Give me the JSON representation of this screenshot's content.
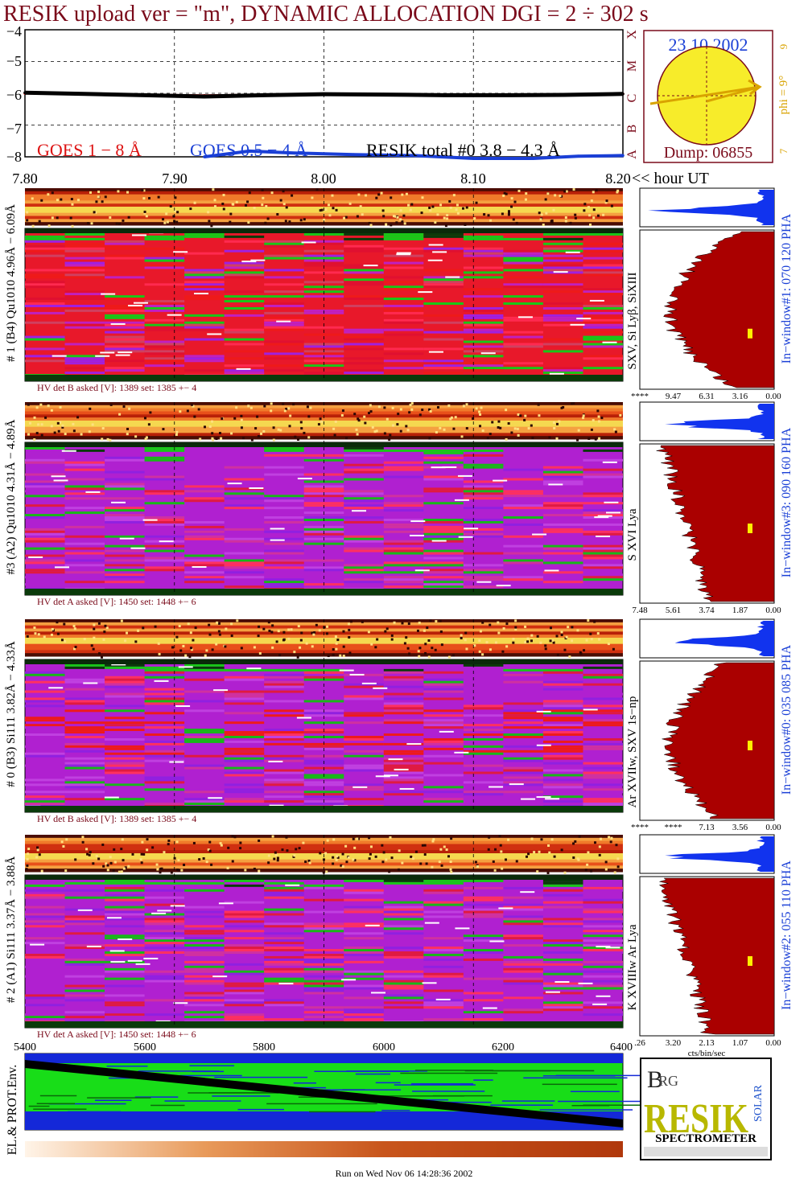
{
  "title": "RESIK upload ver = \"m\", DYNAMIC ALLOCATION  DGI =   2 ÷ 302 s",
  "footer": "Run on Wed Nov 06 14:28:36 2002",
  "colors": {
    "goes_1_8": "#dd1111",
    "goes_05_4": "#1a3fd6",
    "resik": "#000000",
    "title": "#7a0a1a",
    "hist": "#aa0000",
    "hist_blue": "#1133ee",
    "sun": "#f7ec2a",
    "phi": "#d9a300"
  },
  "top_plot": {
    "yticks": [
      "−4",
      "−5",
      "−6",
      "−7",
      "−8"
    ],
    "ylim": [
      -8,
      -4
    ],
    "xlim": [
      7.8,
      8.2
    ],
    "xticks": [
      "7.80",
      "7.90",
      "8.00",
      "8.10",
      "8.20"
    ],
    "x_unit": "<< hour UT",
    "legend": {
      "goes1": "GOES 1 − 8 Å",
      "goes2": "GOES 0.5 − 4 Å",
      "resik": "RESIK total #0  3.8 − 4.3 Å"
    },
    "right_letters": [
      "X",
      "M",
      "C",
      "B",
      "A"
    ]
  },
  "sun_box": {
    "date": "23 10 2002",
    "dump": "Dump: 06855",
    "phi_label": "phi =  9°",
    "phi_top": "9",
    "phi_bottom": "7"
  },
  "chart_data": {
    "type": "line",
    "title": "RESIK upload ver = \"m\", DYNAMIC ALLOCATION  DGI =   2 ÷ 302 s",
    "xlabel": "<< hour UT",
    "xlim": [
      7.8,
      8.2
    ],
    "ylim": [
      -8,
      -4
    ],
    "grid": true,
    "series": [
      {
        "name": "GOES 1 − 8 Å",
        "x": [
          7.8,
          7.84,
          7.88,
          7.92,
          7.96,
          8.0,
          8.04,
          8.08,
          8.12,
          8.16,
          8.2
        ],
        "values": [
          -6.0,
          -6.02,
          -6.05,
          -6.07,
          -6.05,
          -6.03,
          -6.03,
          -6.05,
          -6.05,
          -6.04,
          -6.02
        ]
      },
      {
        "name": "RESIK total #0  3.8 − 4.3 Å",
        "x": [
          7.8,
          7.84,
          7.88,
          7.92,
          7.96,
          8.0,
          8.04,
          8.08,
          8.12,
          8.16,
          8.2
        ],
        "values": [
          -5.98,
          -6.02,
          -6.06,
          -6.1,
          -6.06,
          -6.03,
          -6.04,
          -6.06,
          -6.06,
          -6.05,
          -6.02
        ]
      },
      {
        "name": "GOES 0.5 − 4 Å",
        "x": [
          7.92,
          7.95,
          7.98,
          8.02,
          8.06,
          8.1,
          8.14,
          8.17,
          8.2
        ],
        "values": [
          -8.0,
          -7.82,
          -7.88,
          -7.93,
          -7.96,
          -8.05,
          -8.05,
          -7.98,
          -7.96
        ]
      }
    ]
  },
  "panels": [
    {
      "id": "1",
      "side": "# 1 (B4) Qu1010 4.96Å − 6.09Å",
      "hv": "HV det B asked [V]:  1389 set:  1385 +−   4",
      "right": "SXV, Si Lyβ, SiXIII",
      "window": "In−window#1:  070 120 PHA",
      "xt": [
        "****",
        "9.47",
        "6.31",
        "3.16",
        "0.00"
      ],
      "marker": 0.62
    },
    {
      "id": "3",
      "side": "#3 (A2) Qu1010  4.31Å − 4.89Å",
      "hv": "HV det A asked [V]:  1450 set:  1448 +−   6",
      "right": "S XVI Lya",
      "window": "In−window#3:  090 160 PHA",
      "xt": [
        "7.48",
        "5.61",
        "3.74",
        "1.87",
        "0.00"
      ],
      "marker": 0.5
    },
    {
      "id": "0",
      "side": "# 0 (B3) Si111  3.82Å − 4.33Å",
      "hv": "HV det B asked [V]:  1389 set:  1385 +−   4",
      "right": "Ar XVIIw,  SXV 1s−np",
      "window": "In−window#0:  035 085 PHA",
      "xt": [
        "****",
        "****",
        "7.13",
        "3.56",
        "0.00"
      ],
      "marker": 0.5
    },
    {
      "id": "2",
      "side": "# 2 (A1) Si111  3.37Å − 3.88Å",
      "hv": "HV det A asked [V]:  1450 set:  1448 +−   6",
      "right": "K XVIIIw  Ar Lya",
      "window": "In−window#2:  055 110 PHA",
      "xt": [
        ".26",
        "3.20",
        "2.13",
        "1.07",
        "0.00"
      ],
      "marker": 0.5
    }
  ],
  "hist_xlabel": "cts/bin/sec",
  "bottom": {
    "xticks": [
      "5400",
      "5600",
      "5800",
      "6000",
      "6200",
      "6400"
    ],
    "side": "EL.& PROT.Env."
  },
  "logo": {
    "l1": "B",
    "l2": "RG",
    "main": "RESIK",
    "solar": "SOLAR",
    "spectrometer": "SPECTROMETER"
  }
}
